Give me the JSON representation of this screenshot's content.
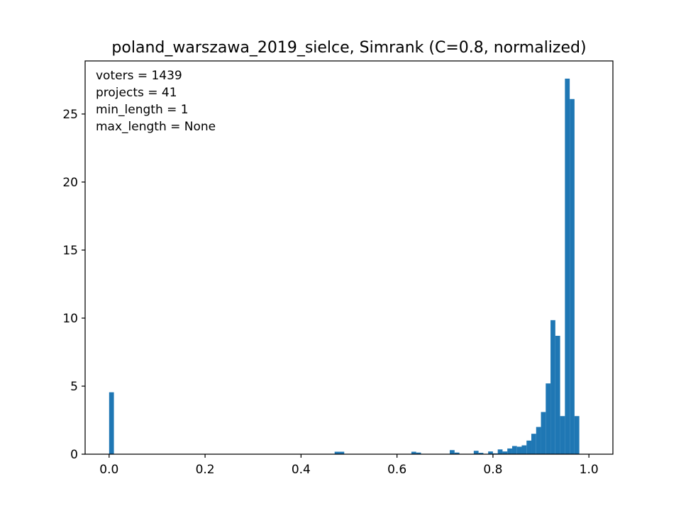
{
  "chart_data": {
    "type": "bar",
    "title": "poland_warszawa_2019_sielce, Simrank (C=0.8, normalized)",
    "xlabel": "",
    "ylabel": "",
    "xlim": [
      -0.05,
      1.05
    ],
    "ylim": [
      0,
      28.9
    ],
    "bar_color": "#1f77b4",
    "bin_width": 0.01,
    "x_ticks": [
      {
        "value": 0.0,
        "label": "0.0"
      },
      {
        "value": 0.2,
        "label": "0.2"
      },
      {
        "value": 0.4,
        "label": "0.4"
      },
      {
        "value": 0.6,
        "label": "0.6"
      },
      {
        "value": 0.8,
        "label": "0.8"
      },
      {
        "value": 1.0,
        "label": "1.0"
      }
    ],
    "y_ticks": [
      {
        "value": 0,
        "label": "0"
      },
      {
        "value": 5,
        "label": "5"
      },
      {
        "value": 10,
        "label": "10"
      },
      {
        "value": 15,
        "label": "15"
      },
      {
        "value": 20,
        "label": "20"
      },
      {
        "value": 25,
        "label": "25"
      }
    ],
    "annotations": [
      "voters = 1439",
      "projects = 41",
      "min_length = 1",
      "max_length = None"
    ],
    "bins": [
      {
        "x0": 0.0,
        "x1": 0.01,
        "value": 4.55
      },
      {
        "x0": 0.47,
        "x1": 0.48,
        "value": 0.18
      },
      {
        "x0": 0.48,
        "x1": 0.49,
        "value": 0.18
      },
      {
        "x0": 0.63,
        "x1": 0.64,
        "value": 0.18
      },
      {
        "x0": 0.64,
        "x1": 0.65,
        "value": 0.12
      },
      {
        "x0": 0.71,
        "x1": 0.72,
        "value": 0.3
      },
      {
        "x0": 0.72,
        "x1": 0.73,
        "value": 0.12
      },
      {
        "x0": 0.76,
        "x1": 0.77,
        "value": 0.25
      },
      {
        "x0": 0.77,
        "x1": 0.78,
        "value": 0.1
      },
      {
        "x0": 0.79,
        "x1": 0.8,
        "value": 0.2
      },
      {
        "x0": 0.8,
        "x1": 0.81,
        "value": 0.06
      },
      {
        "x0": 0.81,
        "x1": 0.82,
        "value": 0.35
      },
      {
        "x0": 0.82,
        "x1": 0.83,
        "value": 0.2
      },
      {
        "x0": 0.83,
        "x1": 0.84,
        "value": 0.42
      },
      {
        "x0": 0.84,
        "x1": 0.85,
        "value": 0.6
      },
      {
        "x0": 0.85,
        "x1": 0.86,
        "value": 0.55
      },
      {
        "x0": 0.86,
        "x1": 0.87,
        "value": 0.65
      },
      {
        "x0": 0.87,
        "x1": 0.88,
        "value": 1.0
      },
      {
        "x0": 0.88,
        "x1": 0.89,
        "value": 1.5
      },
      {
        "x0": 0.89,
        "x1": 0.9,
        "value": 2.0
      },
      {
        "x0": 0.9,
        "x1": 0.91,
        "value": 3.1
      },
      {
        "x0": 0.91,
        "x1": 0.92,
        "value": 5.2
      },
      {
        "x0": 0.92,
        "x1": 0.93,
        "value": 9.85
      },
      {
        "x0": 0.93,
        "x1": 0.94,
        "value": 8.7
      },
      {
        "x0": 0.94,
        "x1": 0.95,
        "value": 2.8
      },
      {
        "x0": 0.95,
        "x1": 0.96,
        "value": 27.6
      },
      {
        "x0": 0.96,
        "x1": 0.97,
        "value": 26.1
      },
      {
        "x0": 0.97,
        "x1": 0.98,
        "value": 2.8
      }
    ]
  }
}
